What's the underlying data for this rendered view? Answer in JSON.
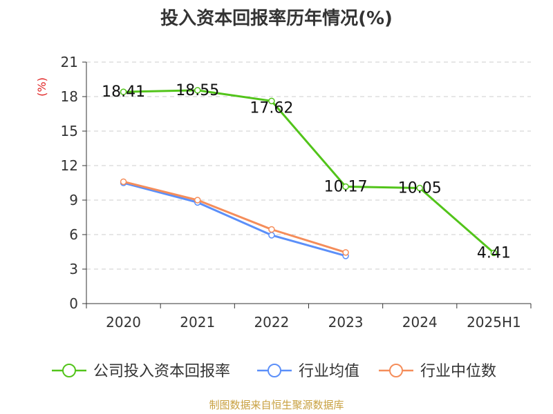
{
  "title": "投入资本回报率历年情况(%)",
  "source": "制图数据来自恒生聚源数据库",
  "colors": {
    "company": "#52c41a",
    "industry_avg": "#5b8ff9",
    "industry_median": "#f58d5a",
    "ylabel": "#e02020",
    "source": "#c8a040"
  },
  "chart_data": {
    "type": "line",
    "title": "投入资本回报率历年情况(%)",
    "ylabel": "(%)",
    "xlabel": "",
    "ylim": [
      0,
      21
    ],
    "yticks": [
      0,
      3,
      6,
      9,
      12,
      15,
      18,
      21
    ],
    "grid": true,
    "legend_position": "bottom",
    "categories": [
      "2020",
      "2021",
      "2022",
      "2023",
      "2024",
      "2025H1"
    ],
    "series": [
      {
        "name": "公司投入资本回报率",
        "color": "#52c41a",
        "values": [
          18.41,
          18.55,
          17.62,
          10.17,
          10.05,
          4.41
        ],
        "labels": [
          "18.41",
          "18.55",
          "17.62",
          "10.17",
          "10.05",
          "4.41"
        ]
      },
      {
        "name": "行业均值",
        "color": "#5b8ff9",
        "values": [
          10.5,
          8.8,
          5.95,
          4.15,
          null,
          null
        ]
      },
      {
        "name": "行业中位数",
        "color": "#f58d5a",
        "values": [
          10.6,
          9.0,
          6.45,
          4.45,
          null,
          null
        ]
      }
    ]
  }
}
